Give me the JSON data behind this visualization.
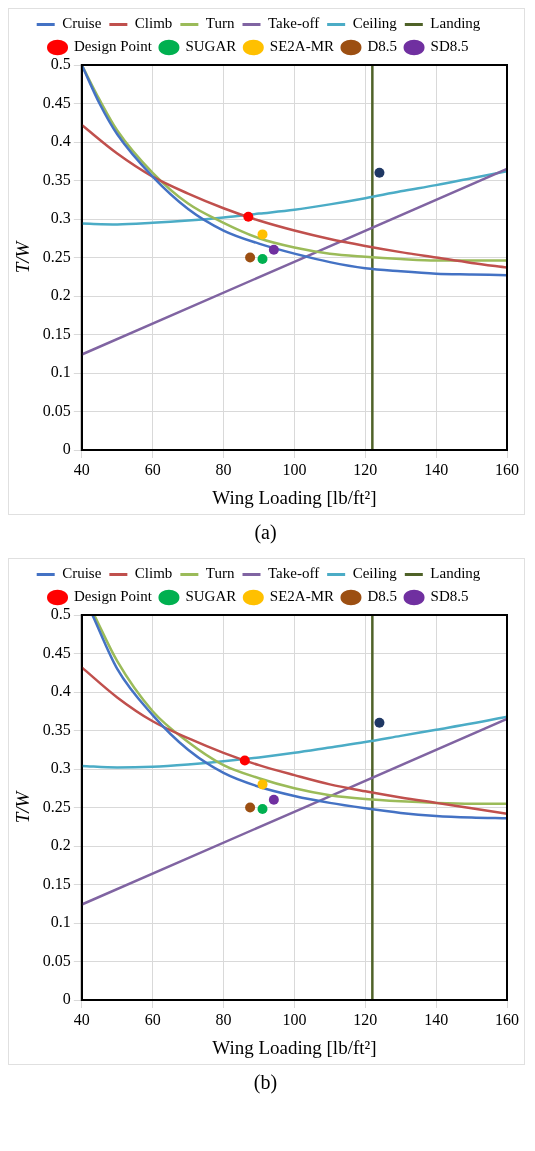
{
  "chart_data": [
    {
      "type": "line",
      "xlabel": "Wing Loading [lb/ft²]",
      "ylabel": "T/W",
      "xlim": [
        40,
        160
      ],
      "ylim": [
        0,
        0.5
      ],
      "xticks": [
        40,
        60,
        80,
        100,
        120,
        140,
        160
      ],
      "yticks": [
        0,
        0.05,
        0.1,
        0.15,
        0.2,
        0.25,
        0.3,
        0.35,
        0.4,
        0.45,
        0.5
      ],
      "grid": true,
      "legend": "top",
      "marker": "none",
      "line_style": "solid",
      "annotations": [
        "(a)"
      ],
      "series": [
        {
          "name": "Cruise",
          "color": "#4472c4",
          "x": [
            40,
            45,
            50,
            60,
            70,
            80,
            90,
            100,
            110,
            120,
            130,
            140,
            150,
            160
          ],
          "values": [
            0.5,
            0.45,
            0.41,
            0.355,
            0.313,
            0.285,
            0.268,
            0.255,
            0.244,
            0.236,
            0.232,
            0.229,
            0.228,
            0.227
          ]
        },
        {
          "name": "Climb",
          "color": "#c0504d",
          "x": [
            40,
            50,
            60,
            70,
            80,
            90,
            100,
            110,
            120,
            130,
            140,
            150,
            160
          ],
          "values": [
            0.422,
            0.385,
            0.355,
            0.333,
            0.314,
            0.298,
            0.285,
            0.274,
            0.265,
            0.257,
            0.25,
            0.243,
            0.237
          ]
        },
        {
          "name": "Turn",
          "color": "#9bbb59",
          "x": [
            40,
            45,
            50,
            60,
            70,
            80,
            90,
            100,
            110,
            120,
            130,
            140,
            150,
            160
          ],
          "values": [
            0.5,
            0.455,
            0.415,
            0.36,
            0.32,
            0.295,
            0.275,
            0.263,
            0.255,
            0.251,
            0.248,
            0.246,
            0.246,
            0.246
          ]
        },
        {
          "name": "Take-off",
          "color": "#8064a2",
          "x": [
            40,
            160
          ],
          "values": [
            0.124,
            0.365
          ]
        },
        {
          "name": "Ceiling",
          "color": "#4bacc6",
          "x": [
            40,
            50,
            60,
            70,
            80,
            90,
            100,
            110,
            120,
            130,
            140,
            150,
            160
          ],
          "values": [
            0.294,
            0.293,
            0.295,
            0.298,
            0.302,
            0.307,
            0.312,
            0.319,
            0.327,
            0.336,
            0.344,
            0.353,
            0.362
          ]
        },
        {
          "name": "Landing",
          "color": "#4f6228",
          "x": [
            122,
            122
          ],
          "values": [
            0,
            0.5
          ]
        },
        {
          "name": "Design Point",
          "type": "scatter",
          "marker": "circle",
          "color": "#ff0000",
          "x": [
            87
          ],
          "values": [
            0.303
          ]
        },
        {
          "type": "scatter",
          "marker": "circle",
          "color": "#1f3864",
          "x": [
            124
          ],
          "values": [
            0.36
          ]
        },
        {
          "name": "SUGAR",
          "type": "scatter",
          "marker": "circle",
          "color": "#00b050",
          "x": [
            91
          ],
          "values": [
            0.248
          ]
        },
        {
          "name": "SE2A-MR",
          "type": "scatter",
          "marker": "circle",
          "color": "#ffc000",
          "x": [
            91
          ],
          "values": [
            0.28
          ]
        },
        {
          "name": "D8.5",
          "type": "scatter",
          "marker": "circle",
          "color": "#9c4f12",
          "x": [
            87.5
          ],
          "values": [
            0.25
          ]
        },
        {
          "name": "SD8.5",
          "type": "scatter",
          "marker": "circle",
          "color": "#7030a0",
          "x": [
            94.2
          ],
          "values": [
            0.26
          ]
        }
      ]
    },
    {
      "type": "line",
      "xlabel": "Wing Loading [lb/ft²]",
      "ylabel": "T/W",
      "xlim": [
        40,
        160
      ],
      "ylim": [
        0,
        0.5
      ],
      "xticks": [
        40,
        60,
        80,
        100,
        120,
        140,
        160
      ],
      "yticks": [
        0,
        0.05,
        0.1,
        0.15,
        0.2,
        0.25,
        0.3,
        0.35,
        0.4,
        0.45,
        0.5
      ],
      "grid": true,
      "legend": "top",
      "marker": "none",
      "line_style": "solid",
      "annotations": [
        "(b)"
      ],
      "series": [
        {
          "name": "Cruise",
          "color": "#4472c4",
          "x": [
            43,
            50,
            60,
            70,
            80,
            90,
            100,
            110,
            120,
            130,
            140,
            150,
            160
          ],
          "values": [
            0.5,
            0.43,
            0.37,
            0.325,
            0.295,
            0.277,
            0.265,
            0.256,
            0.249,
            0.243,
            0.239,
            0.237,
            0.236
          ]
        },
        {
          "name": "Climb",
          "color": "#c0504d",
          "x": [
            40,
            50,
            60,
            70,
            80,
            90,
            100,
            110,
            120,
            130,
            140,
            150,
            160
          ],
          "values": [
            0.432,
            0.393,
            0.362,
            0.34,
            0.321,
            0.305,
            0.292,
            0.28,
            0.271,
            0.263,
            0.256,
            0.249,
            0.242
          ]
        },
        {
          "name": "Turn",
          "color": "#9bbb59",
          "x": [
            43.5,
            50,
            60,
            70,
            80,
            90,
            100,
            110,
            120,
            130,
            140,
            150,
            160
          ],
          "values": [
            0.5,
            0.44,
            0.375,
            0.335,
            0.305,
            0.288,
            0.275,
            0.266,
            0.261,
            0.258,
            0.256,
            0.255,
            0.255
          ]
        },
        {
          "name": "Take-off",
          "color": "#8064a2",
          "x": [
            40,
            160
          ],
          "values": [
            0.124,
            0.365
          ]
        },
        {
          "name": "Ceiling",
          "color": "#4bacc6",
          "x": [
            40,
            50,
            60,
            70,
            80,
            90,
            100,
            110,
            120,
            130,
            140,
            150,
            160
          ],
          "values": [
            0.304,
            0.302,
            0.303,
            0.306,
            0.31,
            0.315,
            0.321,
            0.328,
            0.335,
            0.343,
            0.351,
            0.359,
            0.368
          ]
        },
        {
          "name": "Landing",
          "color": "#4f6228",
          "x": [
            122,
            122
          ],
          "values": [
            0,
            0.5
          ]
        },
        {
          "name": "Design Point",
          "type": "scatter",
          "marker": "circle",
          "color": "#ff0000",
          "x": [
            86
          ],
          "values": [
            0.311
          ]
        },
        {
          "type": "scatter",
          "marker": "circle",
          "color": "#1f3864",
          "x": [
            124
          ],
          "values": [
            0.36
          ]
        },
        {
          "name": "SUGAR",
          "type": "scatter",
          "marker": "circle",
          "color": "#00b050",
          "x": [
            91
          ],
          "values": [
            0.248
          ]
        },
        {
          "name": "SE2A-MR",
          "type": "scatter",
          "marker": "circle",
          "color": "#ffc000",
          "x": [
            91
          ],
          "values": [
            0.28
          ]
        },
        {
          "name": "D8.5",
          "type": "scatter",
          "marker": "circle",
          "color": "#9c4f12",
          "x": [
            87.5
          ],
          "values": [
            0.25
          ]
        },
        {
          "name": "SD8.5",
          "type": "scatter",
          "marker": "circle",
          "color": "#7030a0",
          "x": [
            94.2
          ],
          "values": [
            0.26
          ]
        }
      ]
    }
  ]
}
